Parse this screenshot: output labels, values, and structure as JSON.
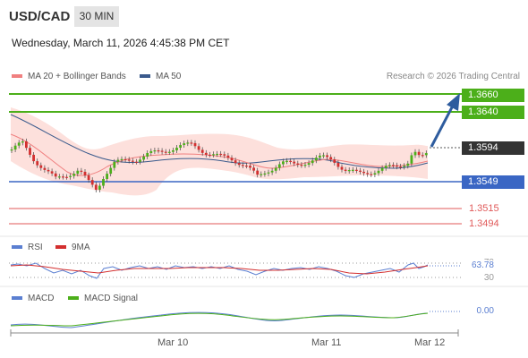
{
  "header": {
    "symbol": "USD/CAD",
    "timeframe": "30 MIN",
    "datetime": "Wednesday, March 11, 2026 4:45:38 PM CET"
  },
  "legend": {
    "ma20": "MA 20 + Bollinger Bands",
    "ma50": "MA 50",
    "research": "Research © 2026 Trading Central"
  },
  "price_levels": {
    "r2": "1.3660",
    "r1": "1.3640",
    "current": "1.3594",
    "pivot": "1.3549",
    "s1": "1.3515",
    "s2": "1.3494"
  },
  "rsi": {
    "label": "RSI",
    "ma_label": "9MA",
    "value": "63.78",
    "level_upper": "70",
    "level_lower": "30"
  },
  "macd": {
    "label": "MACD",
    "signal_label": "MACD Signal",
    "value": "0.00"
  },
  "x_axis": [
    "Mar 10",
    "Mar 11",
    "Mar 12"
  ],
  "colors": {
    "resistance": "#4caf1a",
    "pivot": "#3a66c4",
    "support": "#e05a5a",
    "bollinger_fill": "#fde0dc",
    "ma20": "#f08080",
    "ma50": "#3a5a8c",
    "up_candle": "#4caf1a",
    "down_candle": "#d32f2f",
    "arrow": "#2e5c9e",
    "rsi_line": "#5b7fd1",
    "rsi_ma": "#d32f2f",
    "macd_line": "#5b7fd1",
    "macd_signal": "#4caf1a"
  }
}
